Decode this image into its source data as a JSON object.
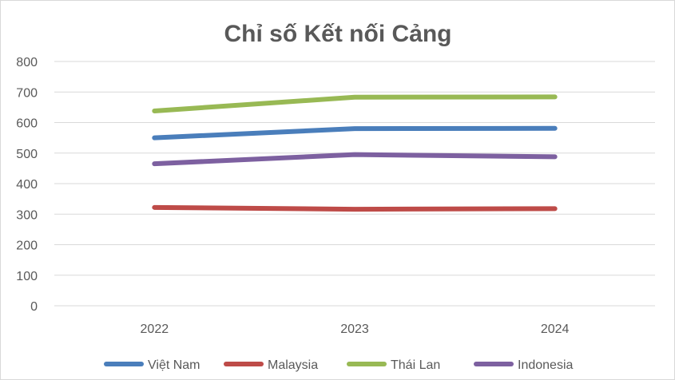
{
  "chart_data": {
    "type": "line",
    "title": "Chỉ số Kết nối Cảng",
    "xlabel": "",
    "ylabel": "",
    "categories": [
      "2022",
      "2023",
      "2024"
    ],
    "ylim": [
      0,
      800
    ],
    "yticks": [
      0,
      100,
      200,
      300,
      400,
      500,
      600,
      700,
      800
    ],
    "grid": true,
    "legend_position": "bottom",
    "series": [
      {
        "name": "Việt Nam",
        "color": "#4a7ebb",
        "values": [
          550,
          580,
          581
        ]
      },
      {
        "name": "Malaysia",
        "color": "#be4b48",
        "values": [
          322,
          316,
          318
        ]
      },
      {
        "name": "Thái Lan",
        "color": "#98b954",
        "values": [
          638,
          683,
          684
        ]
      },
      {
        "name": "Indonesia",
        "color": "#7d60a0",
        "values": [
          465,
          495,
          488
        ]
      }
    ]
  }
}
